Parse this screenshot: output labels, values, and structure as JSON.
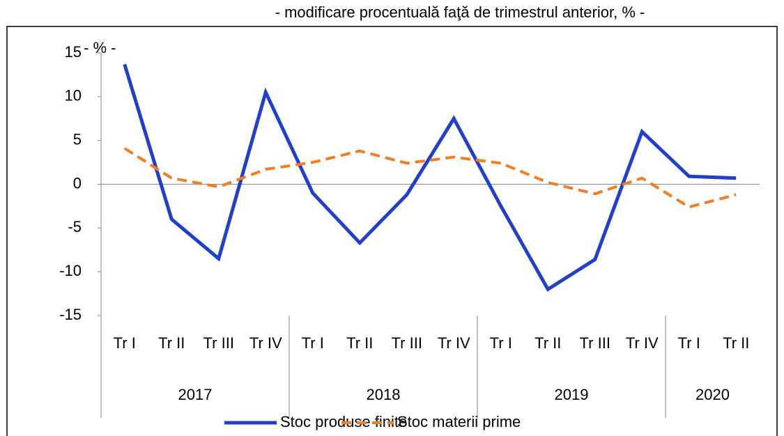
{
  "chart_data": {
    "type": "line",
    "subtitle": "- modificare procentuală faţă de trimestrul anterior, %  -",
    "ylabel": "- % -",
    "groups": [
      {
        "label": "2017",
        "categories": [
          "Tr I",
          "Tr II",
          "Tr III",
          "Tr IV"
        ]
      },
      {
        "label": "2018",
        "categories": [
          "Tr I",
          "Tr II",
          "Tr III",
          "Tr IV"
        ]
      },
      {
        "label": "2019",
        "categories": [
          "Tr I",
          "Tr II",
          "Tr III",
          "Tr IV"
        ]
      },
      {
        "label": "2020",
        "categories": [
          "Tr I",
          "Tr II"
        ]
      }
    ],
    "series": [
      {
        "name": "Stoc produse finite",
        "color": "#1f3fcc",
        "dashed": false,
        "values": [
          13.7,
          -4,
          -8.5,
          10.5,
          -1,
          -6.7,
          -1.2,
          7.5,
          -2.5,
          -12,
          -8.6,
          6,
          0.9,
          0.7
        ]
      },
      {
        "name": "Stoc materii prime",
        "color": "#f57c1f",
        "dashed": true,
        "values": [
          4.1,
          0.7,
          -0.3,
          1.7,
          2.5,
          3.8,
          2.4,
          3.1,
          2.4,
          0.2,
          -1.1,
          0.7,
          -2.6,
          -1.2
        ]
      }
    ],
    "ylim": [
      -15,
      15
    ],
    "yticks": [
      -15,
      -10,
      -5,
      0,
      5,
      10,
      15
    ],
    "grid": false,
    "legend": "bottom"
  }
}
